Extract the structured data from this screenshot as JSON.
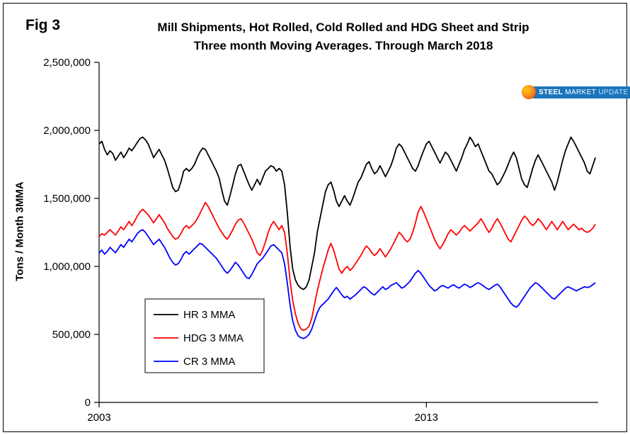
{
  "figure": {
    "fig_label": "Fig 3",
    "title_line1": "Mill Shipments, Hot Rolled, Cold Rolled and HDG Sheet and Strip",
    "title_line2": "Three month Moving Averages. Through March 2018",
    "y_axis_label": "Tons / Month 3MMA"
  },
  "logo": {
    "word1": "STEEL",
    "word2": "MARKET",
    "word3": "UPDATE"
  },
  "chart_data": {
    "type": "line",
    "title": "Mill Shipments, Hot Rolled, Cold Rolled and HDG Sheet and Strip — Three month Moving Averages. Through March 2018",
    "xlabel": "",
    "ylabel": "Tons / Month 3MMA",
    "ylim": [
      0,
      2500000
    ],
    "grid": false,
    "legend_position": "inside lower-left",
    "x_period": "monthly 3-month moving averages, Jan 2003 through Mar 2018",
    "x_start": 2003.0,
    "x_step_years": 0.0833333,
    "x_end": 2018.25,
    "xticks": [
      {
        "value": 2003,
        "label": "2003"
      },
      {
        "value": 2013,
        "label": "2013"
      }
    ],
    "yticks": [
      {
        "value": 0,
        "label": "0"
      },
      {
        "value": 500000,
        "label": "500,000"
      },
      {
        "value": 1000000,
        "label": "1,000,000"
      },
      {
        "value": 1500000,
        "label": "1,500,000"
      },
      {
        "value": 2000000,
        "label": "2,000,000"
      },
      {
        "value": 2500000,
        "label": "2,500,000"
      }
    ],
    "series": [
      {
        "name": "HR 3 MMA",
        "color": "#000000",
        "values": [
          1900000,
          1920000,
          1860000,
          1820000,
          1850000,
          1830000,
          1780000,
          1810000,
          1840000,
          1800000,
          1830000,
          1870000,
          1850000,
          1880000,
          1910000,
          1940000,
          1950000,
          1930000,
          1900000,
          1850000,
          1800000,
          1830000,
          1860000,
          1820000,
          1780000,
          1720000,
          1650000,
          1580000,
          1550000,
          1560000,
          1620000,
          1700000,
          1720000,
          1700000,
          1720000,
          1750000,
          1800000,
          1840000,
          1870000,
          1860000,
          1820000,
          1780000,
          1740000,
          1700000,
          1650000,
          1560000,
          1480000,
          1450000,
          1520000,
          1600000,
          1680000,
          1740000,
          1750000,
          1700000,
          1650000,
          1600000,
          1560000,
          1600000,
          1640000,
          1600000,
          1650000,
          1700000,
          1720000,
          1740000,
          1730000,
          1700000,
          1720000,
          1700000,
          1600000,
          1400000,
          1150000,
          980000,
          900000,
          860000,
          840000,
          830000,
          850000,
          900000,
          1000000,
          1100000,
          1250000,
          1350000,
          1450000,
          1550000,
          1600000,
          1620000,
          1560000,
          1480000,
          1440000,
          1480000,
          1520000,
          1480000,
          1450000,
          1500000,
          1560000,
          1620000,
          1650000,
          1700000,
          1750000,
          1770000,
          1720000,
          1680000,
          1700000,
          1740000,
          1700000,
          1660000,
          1700000,
          1740000,
          1800000,
          1870000,
          1900000,
          1880000,
          1840000,
          1800000,
          1760000,
          1720000,
          1700000,
          1740000,
          1800000,
          1850000,
          1900000,
          1920000,
          1880000,
          1840000,
          1800000,
          1760000,
          1800000,
          1840000,
          1820000,
          1780000,
          1740000,
          1700000,
          1750000,
          1800000,
          1860000,
          1900000,
          1950000,
          1920000,
          1880000,
          1900000,
          1850000,
          1800000,
          1750000,
          1700000,
          1680000,
          1640000,
          1600000,
          1620000,
          1660000,
          1700000,
          1750000,
          1800000,
          1840000,
          1800000,
          1720000,
          1640000,
          1600000,
          1580000,
          1650000,
          1720000,
          1780000,
          1820000,
          1780000,
          1740000,
          1700000,
          1660000,
          1620000,
          1560000,
          1620000,
          1700000,
          1780000,
          1850000,
          1900000,
          1950000,
          1920000,
          1880000,
          1840000,
          1800000,
          1760000,
          1700000,
          1680000,
          1740000,
          1800000
        ]
      },
      {
        "name": "HDG 3 MMA",
        "color": "#ff0000",
        "values": [
          1220000,
          1240000,
          1230000,
          1250000,
          1270000,
          1250000,
          1230000,
          1260000,
          1290000,
          1270000,
          1300000,
          1330000,
          1300000,
          1330000,
          1370000,
          1400000,
          1420000,
          1400000,
          1380000,
          1350000,
          1320000,
          1350000,
          1380000,
          1350000,
          1320000,
          1280000,
          1250000,
          1220000,
          1200000,
          1210000,
          1240000,
          1280000,
          1300000,
          1280000,
          1300000,
          1320000,
          1350000,
          1390000,
          1430000,
          1470000,
          1440000,
          1400000,
          1360000,
          1320000,
          1280000,
          1250000,
          1220000,
          1200000,
          1230000,
          1270000,
          1310000,
          1340000,
          1350000,
          1320000,
          1280000,
          1240000,
          1200000,
          1150000,
          1100000,
          1080000,
          1120000,
          1180000,
          1250000,
          1300000,
          1330000,
          1300000,
          1270000,
          1300000,
          1250000,
          1100000,
          900000,
          750000,
          650000,
          580000,
          540000,
          530000,
          540000,
          560000,
          620000,
          720000,
          820000,
          900000,
          980000,
          1050000,
          1120000,
          1170000,
          1120000,
          1050000,
          980000,
          950000,
          980000,
          1000000,
          970000,
          990000,
          1020000,
          1050000,
          1080000,
          1120000,
          1150000,
          1130000,
          1100000,
          1080000,
          1100000,
          1130000,
          1100000,
          1070000,
          1100000,
          1130000,
          1170000,
          1210000,
          1250000,
          1230000,
          1200000,
          1180000,
          1200000,
          1250000,
          1320000,
          1400000,
          1440000,
          1400000,
          1350000,
          1300000,
          1250000,
          1200000,
          1160000,
          1130000,
          1160000,
          1200000,
          1240000,
          1270000,
          1250000,
          1230000,
          1250000,
          1280000,
          1300000,
          1280000,
          1260000,
          1280000,
          1300000,
          1320000,
          1350000,
          1320000,
          1280000,
          1250000,
          1280000,
          1320000,
          1350000,
          1320000,
          1280000,
          1240000,
          1200000,
          1180000,
          1220000,
          1260000,
          1300000,
          1340000,
          1370000,
          1350000,
          1320000,
          1300000,
          1320000,
          1350000,
          1330000,
          1300000,
          1270000,
          1300000,
          1330000,
          1300000,
          1270000,
          1300000,
          1330000,
          1300000,
          1270000,
          1290000,
          1310000,
          1290000,
          1270000,
          1280000,
          1260000,
          1250000,
          1260000,
          1280000,
          1310000
        ]
      },
      {
        "name": "CR 3 MMA",
        "color": "#0000ff",
        "values": [
          1100000,
          1120000,
          1090000,
          1110000,
          1140000,
          1120000,
          1100000,
          1130000,
          1160000,
          1140000,
          1170000,
          1200000,
          1180000,
          1210000,
          1240000,
          1260000,
          1270000,
          1250000,
          1220000,
          1190000,
          1160000,
          1180000,
          1200000,
          1170000,
          1140000,
          1100000,
          1060000,
          1030000,
          1010000,
          1020000,
          1050000,
          1090000,
          1110000,
          1090000,
          1110000,
          1130000,
          1150000,
          1170000,
          1160000,
          1140000,
          1120000,
          1100000,
          1080000,
          1060000,
          1030000,
          1000000,
          970000,
          950000,
          970000,
          1000000,
          1030000,
          1010000,
          980000,
          950000,
          920000,
          910000,
          940000,
          980000,
          1020000,
          1040000,
          1060000,
          1090000,
          1120000,
          1150000,
          1160000,
          1140000,
          1120000,
          1100000,
          1020000,
          880000,
          720000,
          600000,
          530000,
          490000,
          475000,
          470000,
          480000,
          500000,
          540000,
          600000,
          660000,
          700000,
          720000,
          740000,
          760000,
          790000,
          820000,
          845000,
          820000,
          790000,
          770000,
          780000,
          760000,
          775000,
          790000,
          810000,
          830000,
          850000,
          840000,
          820000,
          800000,
          790000,
          810000,
          830000,
          850000,
          830000,
          840000,
          860000,
          870000,
          880000,
          860000,
          840000,
          850000,
          870000,
          890000,
          920000,
          950000,
          970000,
          950000,
          920000,
          890000,
          860000,
          840000,
          820000,
          830000,
          850000,
          860000,
          850000,
          840000,
          855000,
          865000,
          850000,
          840000,
          855000,
          870000,
          860000,
          845000,
          855000,
          870000,
          880000,
          870000,
          855000,
          840000,
          830000,
          845000,
          860000,
          870000,
          850000,
          820000,
          790000,
          760000,
          730000,
          710000,
          700000,
          720000,
          750000,
          780000,
          810000,
          840000,
          860000,
          880000,
          870000,
          850000,
          830000,
          810000,
          790000,
          770000,
          760000,
          780000,
          800000,
          820000,
          840000,
          850000,
          840000,
          830000,
          820000,
          830000,
          840000,
          850000,
          845000,
          850000,
          865000,
          880000
        ]
      }
    ]
  }
}
